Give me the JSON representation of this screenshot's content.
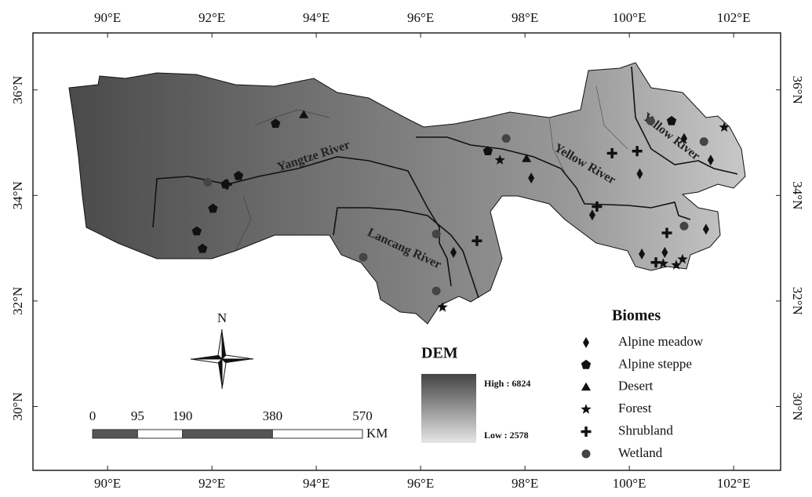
{
  "map": {
    "lon_range": [
      88.57,
      102.9
    ],
    "lat_range": [
      28.79,
      37.08
    ],
    "lon_ticks": [
      {
        "value": 90,
        "label": "90°E"
      },
      {
        "value": 92,
        "label": "92°E"
      },
      {
        "value": 94,
        "label": "94°E"
      },
      {
        "value": 96,
        "label": "96°E"
      },
      {
        "value": 98,
        "label": "98°E"
      },
      {
        "value": 100,
        "label": "100°E"
      },
      {
        "value": 102,
        "label": "102°E"
      }
    ],
    "lat_ticks": [
      {
        "value": 30,
        "label": "30°N"
      },
      {
        "value": 32,
        "label": "32°N"
      },
      {
        "value": 34,
        "label": "34°N"
      },
      {
        "value": 36,
        "label": "36°N"
      }
    ],
    "rivers": [
      "Yangtze River",
      "Yellow River",
      "Yellow River",
      "Lancang River"
    ],
    "north": "N",
    "scale": {
      "ticks": [
        {
          "value": 0,
          "label": "0"
        },
        {
          "value": 95,
          "label": "95"
        },
        {
          "value": 190,
          "label": "190"
        },
        {
          "value": 380,
          "label": "380"
        },
        {
          "value": 570,
          "label": "570"
        }
      ],
      "unit": "KM"
    },
    "dem": {
      "title": "DEM",
      "high": "High : 6824",
      "low": "Low : 2578"
    },
    "biomes_title": "Biomes",
    "biomes": [
      {
        "name": "Alpine meadow",
        "sites": [
          [
            96.63,
            32.92
          ],
          [
            99.29,
            33.63
          ],
          [
            100.2,
            34.41
          ],
          [
            101.05,
            35.08
          ],
          [
            101.56,
            34.67
          ],
          [
            100.24,
            32.89
          ],
          [
            100.68,
            32.92
          ],
          [
            101.47,
            33.36
          ],
          [
            98.12,
            34.33
          ]
        ]
      },
      {
        "name": "Alpine steppe",
        "sites": [
          [
            93.22,
            35.36
          ],
          [
            92.51,
            34.37
          ],
          [
            92.02,
            33.75
          ],
          [
            91.71,
            33.32
          ],
          [
            91.82,
            32.99
          ],
          [
            92.26,
            34.21
          ],
          [
            97.29,
            34.84
          ],
          [
            100.81,
            35.41
          ]
        ]
      },
      {
        "name": "Desert",
        "sites": [
          [
            93.76,
            35.53
          ],
          [
            98.03,
            34.7
          ]
        ]
      },
      {
        "name": "Forest",
        "sites": [
          [
            101.82,
            35.29
          ],
          [
            100.65,
            32.71
          ],
          [
            100.9,
            32.68
          ],
          [
            101.02,
            32.79
          ],
          [
            96.42,
            31.88
          ],
          [
            97.52,
            34.67
          ]
        ]
      },
      {
        "name": "Shrubland",
        "sites": [
          [
            99.67,
            34.8
          ],
          [
            100.15,
            34.84
          ],
          [
            99.38,
            33.79
          ],
          [
            100.72,
            33.29
          ],
          [
            97.08,
            33.14
          ],
          [
            92.29,
            34.21
          ],
          [
            100.51,
            32.73
          ]
        ]
      },
      {
        "name": "Wetland",
        "sites": [
          [
            91.92,
            34.25
          ],
          [
            96.3,
            33.27
          ],
          [
            94.9,
            32.83
          ],
          [
            97.64,
            35.08
          ],
          [
            101.43,
            35.02
          ],
          [
            101.05,
            33.42
          ],
          [
            96.3,
            32.19
          ],
          [
            100.41,
            35.41
          ]
        ]
      }
    ]
  }
}
